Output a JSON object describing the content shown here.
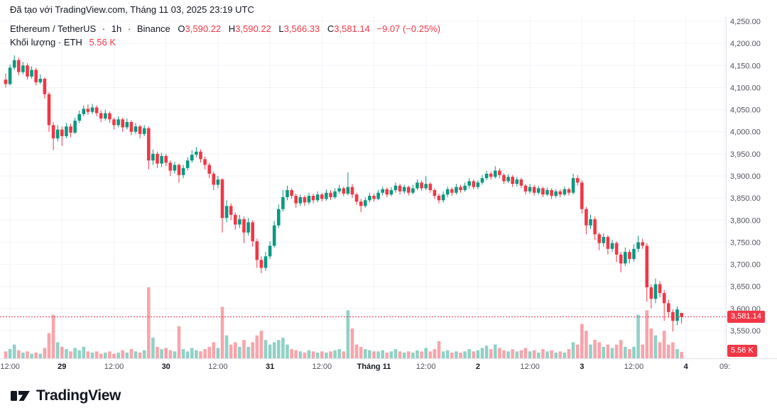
{
  "header": {
    "created_line": "Đã tạo với TradingView.com, Tháng 11 03, 2025 23:19 UTC"
  },
  "legend": {
    "symbol": "Ethereum / TetherUS",
    "separator": "·",
    "interval": "1h",
    "exchange": "Binance",
    "ohlc": {
      "o_label": "O",
      "o": "3,590.22",
      "h_label": "H",
      "h": "3,590.22",
      "l_label": "L",
      "l": "3,566.33",
      "c_label": "C",
      "c": "3,581.14",
      "change": "−9.07 (−0.25%)"
    }
  },
  "volume_legend": {
    "label": "Khối lượng",
    "separator": "·",
    "unit": "ETH",
    "value": "5.56 K"
  },
  "price_axis": {
    "badge_color": "#F23645",
    "last_price_label": "3,581.14",
    "volume_label": "5.56 K",
    "ticks": [
      {
        "label": "4,250.00",
        "value": 4250
      },
      {
        "label": "4,200.00",
        "value": 4200
      },
      {
        "label": "4,150.00",
        "value": 4150
      },
      {
        "label": "4,100.00",
        "value": 4100
      },
      {
        "label": "4,050.00",
        "value": 4050
      },
      {
        "label": "4,000.00",
        "value": 4000
      },
      {
        "label": "3,950.00",
        "value": 3950
      },
      {
        "label": "3,900.00",
        "value": 3900
      },
      {
        "label": "3,850.00",
        "value": 3850
      },
      {
        "label": "3,800.00",
        "value": 3800
      },
      {
        "label": "3,750.00",
        "value": 3750
      },
      {
        "label": "3,700.00",
        "value": 3700
      },
      {
        "label": "3,650.00",
        "value": 3650
      },
      {
        "label": "3,600.00",
        "value": 3600
      },
      {
        "label": "3,550.00",
        "value": 3550
      }
    ]
  },
  "time_axis": {
    "ticks": [
      {
        "label": "12:00",
        "t": 1,
        "major": false
      },
      {
        "label": "29",
        "t": 13,
        "major": true
      },
      {
        "label": "12:00",
        "t": 25,
        "major": false
      },
      {
        "label": "30",
        "t": 37,
        "major": true
      },
      {
        "label": "12:00",
        "t": 49,
        "major": false
      },
      {
        "label": "31",
        "t": 61,
        "major": true
      },
      {
        "label": "12:00",
        "t": 73,
        "major": false
      },
      {
        "label": "Tháng 11",
        "t": 85,
        "major": true
      },
      {
        "label": "12:00",
        "t": 97,
        "major": false
      },
      {
        "label": "2",
        "t": 109,
        "major": true
      },
      {
        "label": "12:00",
        "t": 121,
        "major": false
      },
      {
        "label": "3",
        "t": 133,
        "major": true
      },
      {
        "label": "12:00",
        "t": 145,
        "major": false
      },
      {
        "label": "4",
        "t": 157,
        "major": true
      },
      {
        "label": "09:",
        "t": 166,
        "major": false
      }
    ]
  },
  "logo": {
    "text": "TradingView"
  },
  "chart_data": {
    "type": "candlestick",
    "title": "Ethereum / TetherUS · 1h · Binance",
    "x_start": "Oct 28 2025 ~11:00 UTC, 1-hour candles through Nov 3 2025 23:00 UTC",
    "interval": "1h",
    "ylim": [
      3550,
      4250
    ],
    "last_close": 3581.14,
    "last_ohlc": {
      "o": 3590.22,
      "h": 3590.22,
      "l": 3566.33,
      "c": 3581.14
    },
    "change": -9.07,
    "change_pct": -0.25,
    "last_volume_k": 5.56,
    "up_color": "#089981",
    "down_color": "#F23645",
    "grid_color": "#f0f3fa",
    "candles": [
      [
        4118,
        4132,
        4100,
        4108
      ],
      [
        4108,
        4152,
        4105,
        4145
      ],
      [
        4145,
        4173,
        4140,
        4162
      ],
      [
        4162,
        4168,
        4128,
        4135
      ],
      [
        4135,
        4158,
        4130,
        4150
      ],
      [
        4150,
        4155,
        4118,
        4125
      ],
      [
        4125,
        4148,
        4120,
        4140
      ],
      [
        4140,
        4145,
        4105,
        4112
      ],
      [
        4112,
        4130,
        4108,
        4120
      ],
      [
        4120,
        4123,
        4075,
        4085
      ],
      [
        4085,
        4090,
        4000,
        4015
      ],
      [
        4015,
        4022,
        3958,
        3985
      ],
      [
        3985,
        4015,
        3978,
        4005
      ],
      [
        4005,
        4012,
        3968,
        3990
      ],
      [
        3990,
        4020,
        3985,
        4012
      ],
      [
        4012,
        4018,
        3988,
        3998
      ],
      [
        3998,
        4032,
        3995,
        4025
      ],
      [
        4025,
        4048,
        4020,
        4040
      ],
      [
        4040,
        4060,
        4035,
        4052
      ],
      [
        4052,
        4062,
        4038,
        4045
      ],
      [
        4045,
        4063,
        4040,
        4055
      ],
      [
        4055,
        4060,
        4035,
        4042
      ],
      [
        4042,
        4048,
        4022,
        4030
      ],
      [
        4030,
        4050,
        4025,
        4042
      ],
      [
        4042,
        4046,
        4020,
        4028
      ],
      [
        4028,
        4032,
        4005,
        4015
      ],
      [
        4015,
        4035,
        4010,
        4028
      ],
      [
        4028,
        4032,
        4000,
        4010
      ],
      [
        4010,
        4030,
        4005,
        4022
      ],
      [
        4022,
        4026,
        3992,
        4000
      ],
      [
        4000,
        4020,
        3995,
        4012
      ],
      [
        4012,
        4016,
        3985,
        3995
      ],
      [
        3995,
        4015,
        3990,
        4008
      ],
      [
        4008,
        4012,
        3915,
        3935
      ],
      [
        3935,
        3960,
        3925,
        3950
      ],
      [
        3950,
        3955,
        3918,
        3928
      ],
      [
        3928,
        3952,
        3920,
        3945
      ],
      [
        3945,
        3950,
        3922,
        3930
      ],
      [
        3930,
        3935,
        3900,
        3912
      ],
      [
        3912,
        3932,
        3905,
        3925
      ],
      [
        3925,
        3928,
        3885,
        3902
      ],
      [
        3902,
        3925,
        3895,
        3918
      ],
      [
        3918,
        3942,
        3912,
        3935
      ],
      [
        3935,
        3958,
        3930,
        3948
      ],
      [
        3948,
        3965,
        3942,
        3955
      ],
      [
        3955,
        3960,
        3930,
        3938
      ],
      [
        3938,
        3944,
        3915,
        3925
      ],
      [
        3925,
        3930,
        3895,
        3905
      ],
      [
        3905,
        3910,
        3868,
        3880
      ],
      [
        3880,
        3900,
        3872,
        3892
      ],
      [
        3892,
        3895,
        3772,
        3805
      ],
      [
        3805,
        3845,
        3795,
        3832
      ],
      [
        3832,
        3838,
        3800,
        3812
      ],
      [
        3812,
        3818,
        3778,
        3790
      ],
      [
        3790,
        3812,
        3782,
        3802
      ],
      [
        3802,
        3808,
        3748,
        3772
      ],
      [
        3772,
        3805,
        3765,
        3795
      ],
      [
        3795,
        3800,
        3740,
        3752
      ],
      [
        3752,
        3758,
        3692,
        3710
      ],
      [
        3710,
        3718,
        3680,
        3692
      ],
      [
        3692,
        3728,
        3685,
        3718
      ],
      [
        3718,
        3752,
        3712,
        3742
      ],
      [
        3742,
        3798,
        3738,
        3788
      ],
      [
        3788,
        3835,
        3782,
        3825
      ],
      [
        3825,
        3868,
        3820,
        3852
      ],
      [
        3852,
        3878,
        3845,
        3868
      ],
      [
        3868,
        3872,
        3848,
        3855
      ],
      [
        3855,
        3860,
        3828,
        3838
      ],
      [
        3838,
        3858,
        3832,
        3852
      ],
      [
        3852,
        3856,
        3832,
        3840
      ],
      [
        3840,
        3862,
        3835,
        3855
      ],
      [
        3855,
        3860,
        3838,
        3845
      ],
      [
        3845,
        3865,
        3840,
        3858
      ],
      [
        3858,
        3862,
        3842,
        3848
      ],
      [
        3848,
        3870,
        3844,
        3862
      ],
      [
        3862,
        3868,
        3846,
        3852
      ],
      [
        3852,
        3872,
        3848,
        3865
      ],
      [
        3865,
        3880,
        3860,
        3872
      ],
      [
        3872,
        3876,
        3854,
        3860
      ],
      [
        3860,
        3908,
        3856,
        3875
      ],
      [
        3875,
        3882,
        3850,
        3858
      ],
      [
        3858,
        3862,
        3835,
        3842
      ],
      [
        3842,
        3848,
        3818,
        3832
      ],
      [
        3832,
        3852,
        3828,
        3845
      ],
      [
        3845,
        3862,
        3840,
        3855
      ],
      [
        3855,
        3860,
        3842,
        3848
      ],
      [
        3848,
        3868,
        3845,
        3862
      ],
      [
        3862,
        3876,
        3856,
        3870
      ],
      [
        3870,
        3874,
        3852,
        3858
      ],
      [
        3858,
        3875,
        3854,
        3868
      ],
      [
        3868,
        3885,
        3862,
        3878
      ],
      [
        3878,
        3882,
        3858,
        3865
      ],
      [
        3865,
        3880,
        3860,
        3875
      ],
      [
        3875,
        3878,
        3856,
        3862
      ],
      [
        3862,
        3880,
        3858,
        3872
      ],
      [
        3872,
        3892,
        3868,
        3885
      ],
      [
        3885,
        3890,
        3866,
        3872
      ],
      [
        3872,
        3900,
        3868,
        3882
      ],
      [
        3882,
        3886,
        3862,
        3868
      ],
      [
        3868,
        3872,
        3848,
        3855
      ],
      [
        3855,
        3860,
        3838,
        3845
      ],
      [
        3845,
        3865,
        3840,
        3858
      ],
      [
        3858,
        3876,
        3852,
        3870
      ],
      [
        3870,
        3874,
        3855,
        3862
      ],
      [
        3862,
        3882,
        3858,
        3875
      ],
      [
        3875,
        3880,
        3862,
        3868
      ],
      [
        3868,
        3885,
        3864,
        3878
      ],
      [
        3878,
        3895,
        3872,
        3888
      ],
      [
        3888,
        3892,
        3870,
        3875
      ],
      [
        3875,
        3890,
        3870,
        3885
      ],
      [
        3885,
        3902,
        3880,
        3895
      ],
      [
        3895,
        3912,
        3890,
        3905
      ],
      [
        3905,
        3910,
        3892,
        3898
      ],
      [
        3898,
        3922,
        3894,
        3912
      ],
      [
        3912,
        3918,
        3895,
        3902
      ],
      [
        3902,
        3906,
        3882,
        3888
      ],
      [
        3888,
        3904,
        3884,
        3898
      ],
      [
        3898,
        3902,
        3875,
        3882
      ],
      [
        3882,
        3898,
        3876,
        3892
      ],
      [
        3892,
        3896,
        3872,
        3878
      ],
      [
        3878,
        3882,
        3858,
        3865
      ],
      [
        3865,
        3882,
        3860,
        3875
      ],
      [
        3875,
        3880,
        3856,
        3862
      ],
      [
        3862,
        3878,
        3858,
        3872
      ],
      [
        3872,
        3876,
        3852,
        3858
      ],
      [
        3858,
        3874,
        3854,
        3868
      ],
      [
        3868,
        3872,
        3848,
        3855
      ],
      [
        3855,
        3870,
        3850,
        3865
      ],
      [
        3865,
        3870,
        3852,
        3858
      ],
      [
        3858,
        3876,
        3854,
        3870
      ],
      [
        3870,
        3874,
        3856,
        3862
      ],
      [
        3862,
        3905,
        3858,
        3895
      ],
      [
        3895,
        3902,
        3878,
        3885
      ],
      [
        3885,
        3890,
        3815,
        3825
      ],
      [
        3825,
        3830,
        3768,
        3788
      ],
      [
        3788,
        3812,
        3780,
        3802
      ],
      [
        3802,
        3808,
        3755,
        3768
      ],
      [
        3768,
        3772,
        3732,
        3748
      ],
      [
        3748,
        3770,
        3740,
        3762
      ],
      [
        3762,
        3766,
        3722,
        3735
      ],
      [
        3735,
        3756,
        3728,
        3748
      ],
      [
        3748,
        3752,
        3705,
        3722
      ],
      [
        3722,
        3728,
        3682,
        3702
      ],
      [
        3702,
        3738,
        3696,
        3728
      ],
      [
        3728,
        3734,
        3702,
        3712
      ],
      [
        3712,
        3745,
        3706,
        3735
      ],
      [
        3735,
        3765,
        3728,
        3750
      ],
      [
        3750,
        3758,
        3735,
        3742
      ],
      [
        3742,
        3748,
        3615,
        3648
      ],
      [
        3648,
        3655,
        3600,
        3622
      ],
      [
        3622,
        3668,
        3612,
        3655
      ],
      [
        3655,
        3662,
        3625,
        3635
      ],
      [
        3635,
        3642,
        3572,
        3612
      ],
      [
        3612,
        3620,
        3580,
        3592
      ],
      [
        3592,
        3598,
        3548,
        3572
      ],
      [
        3572,
        3605,
        3562,
        3598
      ],
      [
        3590.22,
        3590.22,
        3566.33,
        3581.14
      ]
    ],
    "volumes_k": [
      6,
      8,
      12,
      7,
      5,
      6,
      4,
      5,
      4,
      9,
      22,
      38,
      14,
      10,
      8,
      6,
      9,
      7,
      10,
      6,
      5,
      6,
      4,
      5,
      6,
      4,
      5,
      7,
      5,
      8,
      6,
      5,
      7,
      62,
      18,
      10,
      8,
      9,
      7,
      6,
      28,
      8,
      6,
      9,
      7,
      6,
      8,
      10,
      14,
      9,
      45,
      20,
      12,
      14,
      10,
      16,
      10,
      14,
      20,
      24,
      16,
      12,
      14,
      16,
      18,
      12,
      8,
      7,
      6,
      5,
      7,
      6,
      5,
      6,
      5,
      6,
      7,
      8,
      6,
      42,
      26,
      12,
      10,
      8,
      7,
      6,
      6,
      7,
      5,
      6,
      8,
      6,
      5,
      6,
      5,
      7,
      6,
      9,
      6,
      8,
      15,
      6,
      7,
      5,
      6,
      5,
      6,
      8,
      6,
      7,
      9,
      11,
      8,
      12,
      9,
      7,
      6,
      8,
      6,
      7,
      9,
      6,
      7,
      5,
      8,
      6,
      7,
      5,
      6,
      5,
      8,
      14,
      12,
      30,
      24,
      12,
      16,
      14,
      10,
      12,
      9,
      12,
      16,
      10,
      8,
      10,
      38,
      12,
      42,
      26,
      20,
      14,
      24,
      12,
      14,
      8,
      5.56
    ]
  }
}
